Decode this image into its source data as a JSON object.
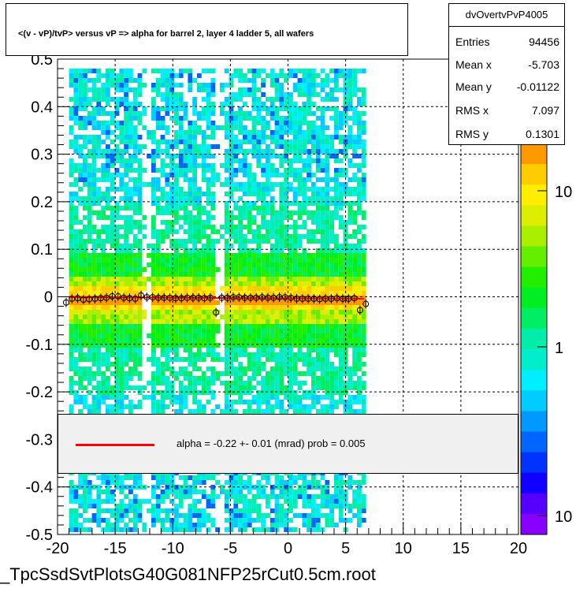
{
  "title": "<(v - vP)/tvP> versus   vP => alpha for barrel 2, layer 4 ladder 5, all wafers",
  "stats": {
    "name": "dvOvertvPvP4005",
    "rows": [
      {
        "key": "Entries",
        "value": "94456"
      },
      {
        "key": "Mean x",
        "value": "-5.703"
      },
      {
        "key": "Mean y",
        "value": "-0.01122"
      },
      {
        "key": "RMS x",
        "value": "7.097"
      },
      {
        "key": "RMS y",
        "value": "0.1301"
      }
    ]
  },
  "fit": {
    "text": "alpha =    -0.22 +-   0.01 (mrad) prob = 0.005",
    "color": "#ff0000"
  },
  "file_label": "_TpcSsdSvtPlotsG40G081NFP25rCut0.5cm.root",
  "chart_data": {
    "type": "heatmap",
    "xlim": [
      -20,
      20
    ],
    "ylim": [
      -0.5,
      0.5
    ],
    "x_ticks": [
      "-20",
      "-15",
      "-10",
      "-5",
      "0",
      "5",
      "10",
      "15",
      "20"
    ],
    "y_ticks": [
      "-0.5",
      "-0.4",
      "-0.3",
      "-0.2",
      "-0.1",
      "0",
      "0.1",
      "0.2",
      "0.3",
      "0.4",
      "0.5"
    ],
    "grid": true,
    "occupied_x_range": [
      -19,
      6.6
    ],
    "gaps_x": [
      -12.5,
      -6.2
    ],
    "z_scale": "log",
    "z_ticks": [
      "10",
      "1",
      "10"
    ],
    "palette": [
      "#ff9900",
      "#ffcc00",
      "#ffee00",
      "#ddee00",
      "#aaee00",
      "#66ee00",
      "#22ee00",
      "#00ee22",
      "#00ee66",
      "#00eeaa",
      "#00eecc",
      "#00eeff",
      "#00ccff",
      "#0099ff",
      "#0066ff",
      "#0033ff",
      "#1100ff",
      "#5500ff",
      "#8800ff"
    ],
    "profile_points": {
      "x": [
        -19.25,
        -18.75,
        -18.25,
        -17.75,
        -17.25,
        -16.75,
        -16.25,
        -15.75,
        -15.25,
        -14.75,
        -14.25,
        -13.75,
        -13.25,
        -12.75,
        -12.25,
        -11.75,
        -11.25,
        -10.75,
        -10.25,
        -9.75,
        -9.25,
        -8.75,
        -8.25,
        -7.75,
        -7.25,
        -6.75,
        -6.25,
        -5.75,
        -5.25,
        -4.75,
        -4.25,
        -3.75,
        -3.25,
        -2.75,
        -2.25,
        -1.75,
        -1.25,
        -0.75,
        -0.25,
        0.25,
        0.75,
        1.25,
        1.75,
        2.25,
        2.75,
        3.25,
        3.75,
        4.25,
        4.75,
        5.25,
        5.75,
        6.25,
        6.75
      ],
      "y": [
        -0.012,
        -0.004,
        -0.003,
        -0.006,
        -0.005,
        -0.004,
        -0.003,
        -0.002,
        0.001,
        0.001,
        -0.002,
        -0.003,
        -0.004,
        0.003,
        -0.001,
        -0.001,
        -0.002,
        -0.002,
        -0.002,
        -0.003,
        -0.003,
        -0.002,
        -0.002,
        -0.002,
        -0.003,
        -0.002,
        -0.033,
        -0.002,
        -0.002,
        -0.001,
        -0.001,
        -0.002,
        -0.002,
        -0.002,
        -0.001,
        -0.002,
        -0.002,
        -0.001,
        -0.001,
        -0.002,
        -0.004,
        -0.004,
        -0.004,
        -0.004,
        -0.005,
        -0.004,
        -0.004,
        -0.003,
        -0.004,
        -0.004,
        -0.003,
        -0.028,
        -0.015
      ]
    },
    "fit_line": {
      "x": [
        -19,
        6.6
      ],
      "y": [
        -0.001,
        -0.004
      ]
    }
  }
}
